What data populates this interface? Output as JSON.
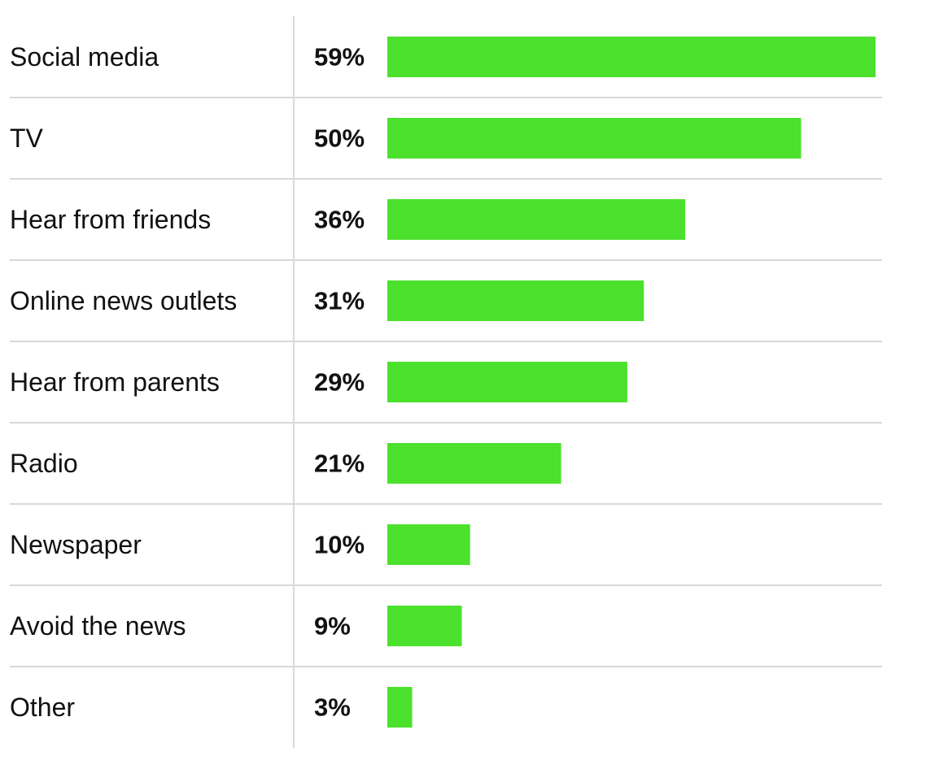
{
  "chart_data": {
    "type": "bar",
    "orientation": "horizontal",
    "categories": [
      "Social media",
      "TV",
      "Hear from friends",
      "Online news outlets",
      "Hear from parents",
      "Radio",
      "Newspaper",
      "Avoid the news",
      "Other"
    ],
    "values": [
      59,
      50,
      36,
      31,
      29,
      21,
      10,
      9,
      3
    ],
    "value_labels": [
      "59%",
      "50%",
      "36%",
      "31%",
      "29%",
      "21%",
      "10%",
      "9%",
      "3%"
    ],
    "unit": "%",
    "xlim": [
      0,
      59
    ],
    "grid": false,
    "colors": {
      "bar": "#4be12d",
      "divider": "#d9d9d9",
      "text": "#111111"
    }
  }
}
